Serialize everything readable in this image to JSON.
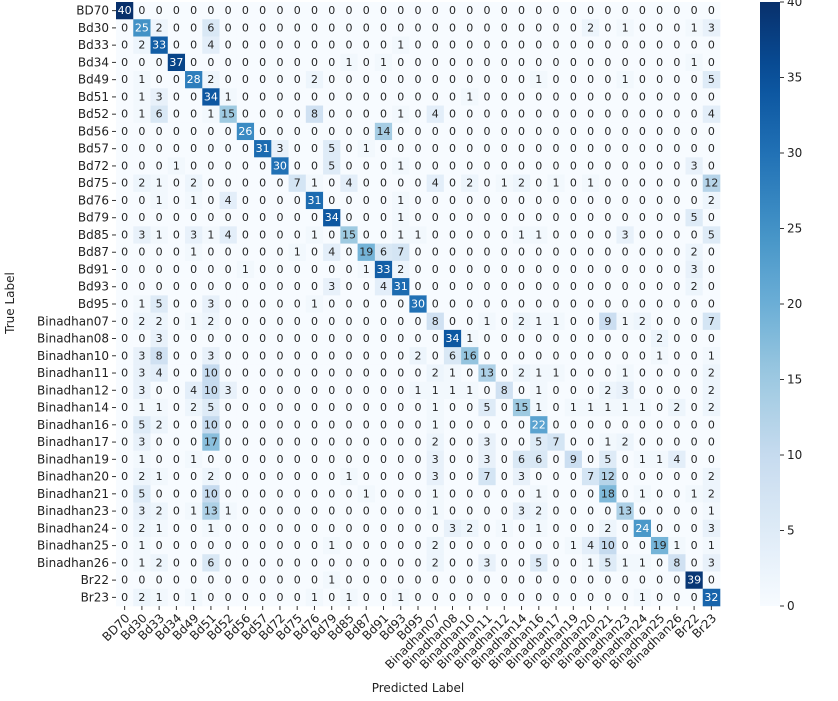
{
  "chart_data": {
    "type": "heatmap",
    "xlabel": "Predicted Label",
    "ylabel": "True Label",
    "colormap": "Blues",
    "x_categories": [
      "BD70",
      "Bd30",
      "Bd33",
      "Bd34",
      "Bd49",
      "Bd51",
      "Bd52",
      "Bd56",
      "Bd57",
      "Bd72",
      "Bd75",
      "Bd76",
      "Bd79",
      "Bd85",
      "Bd87",
      "Bd91",
      "Bd93",
      "Bd95",
      "Binadhan07",
      "Binadhan08",
      "Binadhan10",
      "Binadhan11",
      "Binadhan12",
      "Binadhan14",
      "Binadhan16",
      "Binadhan17",
      "Binadhan19",
      "Binadhan20",
      "Binadhan21",
      "Binadhan23",
      "Binadhan24",
      "Binadhan25",
      "Binadhan26",
      "Br22",
      "Br23"
    ],
    "y_categories": [
      "BD70",
      "Bd30",
      "Bd33",
      "Bd34",
      "Bd49",
      "Bd51",
      "Bd52",
      "Bd56",
      "Bd57",
      "Bd72",
      "Bd75",
      "Bd76",
      "Bd79",
      "Bd85",
      "Bd87",
      "Bd91",
      "Bd93",
      "Bd95",
      "Binadhan07",
      "Binadhan08",
      "Binadhan10",
      "Binadhan11",
      "Binadhan12",
      "Binadhan14",
      "Binadhan16",
      "Binadhan17",
      "Binadhan19",
      "Binadhan20",
      "Binadhan21",
      "Binadhan23",
      "Binadhan24",
      "Binadhan25",
      "Binadhan26",
      "Br22",
      "Br23"
    ],
    "values": [
      [
        40,
        0,
        0,
        0,
        0,
        0,
        0,
        0,
        0,
        0,
        0,
        0,
        0,
        0,
        0,
        0,
        0,
        0,
        0,
        0,
        0,
        0,
        0,
        0,
        0,
        0,
        0,
        0,
        0,
        0,
        0,
        0,
        0,
        0,
        0
      ],
      [
        0,
        25,
        2,
        0,
        0,
        6,
        0,
        0,
        0,
        0,
        0,
        0,
        0,
        0,
        0,
        0,
        0,
        0,
        0,
        0,
        0,
        0,
        0,
        0,
        0,
        0,
        0,
        2,
        0,
        1,
        0,
        0,
        0,
        1,
        3
      ],
      [
        0,
        2,
        33,
        0,
        0,
        4,
        0,
        0,
        0,
        0,
        0,
        0,
        0,
        0,
        0,
        0,
        1,
        0,
        0,
        0,
        0,
        0,
        0,
        0,
        0,
        0,
        0,
        0,
        0,
        0,
        0,
        0,
        0,
        0,
        0
      ],
      [
        0,
        0,
        0,
        37,
        0,
        0,
        0,
        0,
        0,
        0,
        0,
        0,
        0,
        1,
        0,
        1,
        0,
        0,
        0,
        0,
        0,
        0,
        0,
        0,
        0,
        0,
        0,
        0,
        0,
        0,
        0,
        0,
        0,
        1,
        0
      ],
      [
        0,
        1,
        0,
        0,
        28,
        2,
        0,
        0,
        0,
        0,
        0,
        2,
        0,
        0,
        0,
        0,
        0,
        0,
        0,
        0,
        0,
        0,
        0,
        0,
        1,
        0,
        0,
        0,
        0,
        1,
        0,
        0,
        0,
        0,
        5
      ],
      [
        0,
        1,
        3,
        0,
        0,
        34,
        1,
        0,
        0,
        0,
        0,
        0,
        0,
        0,
        0,
        0,
        0,
        0,
        0,
        0,
        1,
        0,
        0,
        0,
        0,
        0,
        0,
        0,
        0,
        0,
        0,
        0,
        0,
        0,
        0
      ],
      [
        0,
        1,
        6,
        0,
        0,
        1,
        15,
        0,
        0,
        0,
        0,
        8,
        0,
        0,
        0,
        0,
        1,
        0,
        4,
        0,
        0,
        0,
        0,
        0,
        0,
        0,
        0,
        0,
        0,
        0,
        0,
        0,
        0,
        0,
        4
      ],
      [
        0,
        0,
        0,
        0,
        0,
        0,
        0,
        26,
        0,
        0,
        0,
        0,
        0,
        0,
        0,
        14,
        0,
        0,
        0,
        0,
        0,
        0,
        0,
        0,
        0,
        0,
        0,
        0,
        0,
        0,
        0,
        0,
        0,
        0,
        0
      ],
      [
        0,
        0,
        0,
        0,
        0,
        0,
        0,
        0,
        31,
        3,
        0,
        0,
        5,
        0,
        1,
        0,
        0,
        0,
        0,
        0,
        0,
        0,
        0,
        0,
        0,
        0,
        0,
        0,
        0,
        0,
        0,
        0,
        0,
        0,
        0
      ],
      [
        0,
        0,
        0,
        1,
        0,
        0,
        0,
        0,
        0,
        30,
        0,
        0,
        5,
        0,
        0,
        0,
        1,
        0,
        0,
        0,
        0,
        0,
        0,
        0,
        0,
        0,
        0,
        0,
        0,
        0,
        0,
        0,
        0,
        3,
        0
      ],
      [
        0,
        2,
        1,
        0,
        2,
        0,
        0,
        0,
        0,
        0,
        7,
        1,
        0,
        4,
        0,
        0,
        0,
        0,
        4,
        0,
        2,
        0,
        1,
        2,
        0,
        1,
        0,
        1,
        0,
        0,
        0,
        0,
        0,
        0,
        12
      ],
      [
        0,
        0,
        1,
        0,
        1,
        0,
        4,
        0,
        0,
        0,
        0,
        31,
        0,
        0,
        0,
        0,
        1,
        0,
        0,
        0,
        0,
        0,
        0,
        0,
        0,
        0,
        0,
        0,
        0,
        0,
        0,
        0,
        0,
        0,
        2
      ],
      [
        0,
        0,
        0,
        0,
        0,
        0,
        0,
        0,
        0,
        0,
        0,
        0,
        34,
        0,
        0,
        0,
        1,
        0,
        0,
        0,
        0,
        0,
        0,
        0,
        0,
        0,
        0,
        0,
        0,
        0,
        0,
        0,
        0,
        5,
        0
      ],
      [
        0,
        3,
        1,
        0,
        3,
        1,
        4,
        0,
        0,
        0,
        0,
        1,
        0,
        15,
        0,
        0,
        1,
        1,
        0,
        0,
        0,
        0,
        0,
        1,
        1,
        0,
        0,
        0,
        0,
        3,
        0,
        0,
        0,
        0,
        5
      ],
      [
        0,
        0,
        0,
        0,
        1,
        0,
        0,
        0,
        0,
        0,
        1,
        0,
        4,
        0,
        19,
        6,
        7,
        0,
        0,
        0,
        0,
        0,
        0,
        0,
        0,
        0,
        0,
        0,
        0,
        0,
        0,
        0,
        0,
        2,
        0
      ],
      [
        0,
        0,
        0,
        0,
        0,
        0,
        0,
        1,
        0,
        0,
        0,
        0,
        0,
        0,
        1,
        33,
        2,
        0,
        0,
        0,
        0,
        0,
        0,
        0,
        0,
        0,
        0,
        0,
        0,
        0,
        0,
        0,
        0,
        3,
        0
      ],
      [
        0,
        0,
        0,
        0,
        0,
        0,
        0,
        0,
        0,
        0,
        0,
        0,
        3,
        0,
        0,
        4,
        31,
        0,
        0,
        0,
        0,
        0,
        0,
        0,
        0,
        0,
        0,
        0,
        0,
        0,
        0,
        0,
        0,
        2,
        0
      ],
      [
        0,
        1,
        5,
        0,
        0,
        3,
        0,
        0,
        0,
        0,
        0,
        1,
        0,
        0,
        0,
        0,
        0,
        30,
        0,
        0,
        0,
        0,
        0,
        0,
        0,
        0,
        0,
        0,
        0,
        0,
        0,
        0,
        0,
        0,
        0
      ],
      [
        0,
        2,
        2,
        0,
        1,
        2,
        0,
        0,
        0,
        0,
        0,
        0,
        0,
        0,
        0,
        0,
        0,
        0,
        8,
        0,
        0,
        1,
        0,
        2,
        1,
        1,
        0,
        0,
        9,
        1,
        2,
        0,
        0,
        0,
        7
      ],
      [
        0,
        0,
        3,
        0,
        0,
        0,
        0,
        0,
        0,
        0,
        0,
        0,
        0,
        0,
        0,
        0,
        0,
        0,
        0,
        34,
        1,
        0,
        0,
        0,
        0,
        0,
        0,
        0,
        0,
        0,
        0,
        2,
        0,
        0,
        0
      ],
      [
        0,
        3,
        8,
        0,
        0,
        3,
        0,
        0,
        0,
        0,
        0,
        0,
        0,
        0,
        0,
        0,
        0,
        2,
        0,
        6,
        16,
        0,
        0,
        0,
        0,
        0,
        0,
        0,
        0,
        0,
        0,
        1,
        0,
        0,
        1
      ],
      [
        0,
        3,
        4,
        0,
        0,
        10,
        0,
        0,
        0,
        0,
        0,
        0,
        0,
        0,
        0,
        0,
        0,
        0,
        2,
        1,
        0,
        13,
        0,
        2,
        1,
        1,
        0,
        0,
        0,
        1,
        0,
        0,
        0,
        0,
        2
      ],
      [
        0,
        3,
        0,
        0,
        4,
        10,
        3,
        0,
        0,
        0,
        0,
        0,
        0,
        0,
        0,
        0,
        0,
        1,
        1,
        1,
        1,
        0,
        8,
        0,
        1,
        0,
        0,
        0,
        2,
        3,
        0,
        0,
        0,
        0,
        2
      ],
      [
        0,
        1,
        1,
        0,
        2,
        5,
        0,
        0,
        0,
        0,
        0,
        0,
        0,
        0,
        0,
        0,
        0,
        0,
        1,
        0,
        0,
        5,
        0,
        15,
        1,
        0,
        1,
        1,
        1,
        1,
        1,
        0,
        2,
        0,
        2
      ],
      [
        0,
        5,
        2,
        0,
        0,
        10,
        0,
        0,
        0,
        0,
        0,
        0,
        0,
        0,
        0,
        0,
        0,
        0,
        1,
        0,
        0,
        0,
        0,
        0,
        22,
        0,
        0,
        0,
        0,
        0,
        0,
        0,
        0,
        0,
        0
      ],
      [
        0,
        3,
        0,
        0,
        0,
        17,
        0,
        0,
        0,
        0,
        0,
        0,
        0,
        0,
        0,
        0,
        0,
        0,
        2,
        0,
        0,
        3,
        0,
        0,
        5,
        7,
        0,
        0,
        1,
        2,
        0,
        0,
        0,
        0,
        0
      ],
      [
        0,
        1,
        0,
        0,
        1,
        0,
        0,
        0,
        0,
        0,
        0,
        0,
        0,
        0,
        0,
        0,
        0,
        0,
        3,
        0,
        0,
        3,
        0,
        6,
        6,
        0,
        9,
        0,
        5,
        0,
        1,
        1,
        4,
        0,
        0
      ],
      [
        0,
        2,
        1,
        0,
        0,
        2,
        0,
        0,
        0,
        0,
        0,
        0,
        0,
        1,
        0,
        0,
        0,
        0,
        3,
        0,
        0,
        7,
        0,
        3,
        0,
        0,
        0,
        7,
        12,
        0,
        0,
        0,
        0,
        0,
        2
      ],
      [
        0,
        5,
        0,
        0,
        0,
        10,
        0,
        0,
        0,
        0,
        0,
        0,
        0,
        0,
        1,
        0,
        0,
        0,
        1,
        0,
        0,
        0,
        0,
        0,
        1,
        0,
        0,
        0,
        18,
        0,
        1,
        0,
        0,
        1,
        2
      ],
      [
        0,
        3,
        2,
        0,
        1,
        13,
        1,
        0,
        0,
        0,
        0,
        0,
        0,
        0,
        0,
        0,
        0,
        0,
        1,
        0,
        0,
        0,
        0,
        3,
        2,
        0,
        0,
        0,
        0,
        13,
        0,
        0,
        0,
        0,
        1
      ],
      [
        0,
        2,
        1,
        0,
        0,
        1,
        0,
        0,
        0,
        0,
        0,
        0,
        0,
        0,
        0,
        0,
        0,
        0,
        0,
        3,
        2,
        0,
        1,
        0,
        1,
        0,
        0,
        0,
        2,
        0,
        24,
        0,
        0,
        0,
        3
      ],
      [
        0,
        1,
        0,
        0,
        0,
        0,
        0,
        0,
        0,
        0,
        0,
        0,
        1,
        0,
        0,
        0,
        0,
        0,
        2,
        0,
        0,
        0,
        0,
        0,
        0,
        0,
        1,
        4,
        10,
        0,
        0,
        19,
        1,
        0,
        1
      ],
      [
        0,
        1,
        2,
        0,
        0,
        6,
        0,
        0,
        0,
        0,
        0,
        0,
        0,
        0,
        0,
        0,
        0,
        0,
        2,
        0,
        0,
        3,
        0,
        0,
        5,
        0,
        0,
        1,
        5,
        1,
        1,
        0,
        8,
        0,
        3
      ],
      [
        0,
        0,
        0,
        0,
        0,
        0,
        0,
        0,
        0,
        0,
        0,
        0,
        1,
        0,
        0,
        0,
        0,
        0,
        0,
        0,
        0,
        0,
        0,
        0,
        0,
        0,
        0,
        0,
        0,
        0,
        0,
        0,
        0,
        39,
        0
      ],
      [
        0,
        2,
        1,
        0,
        1,
        0,
        0,
        0,
        0,
        0,
        0,
        1,
        0,
        1,
        0,
        0,
        1,
        0,
        0,
        0,
        0,
        0,
        0,
        0,
        0,
        0,
        0,
        0,
        0,
        0,
        1,
        0,
        0,
        0,
        32
      ]
    ],
    "zlim": [
      0,
      40
    ],
    "zticks": [
      0,
      5,
      10,
      15,
      20,
      25,
      30,
      35,
      40
    ]
  }
}
